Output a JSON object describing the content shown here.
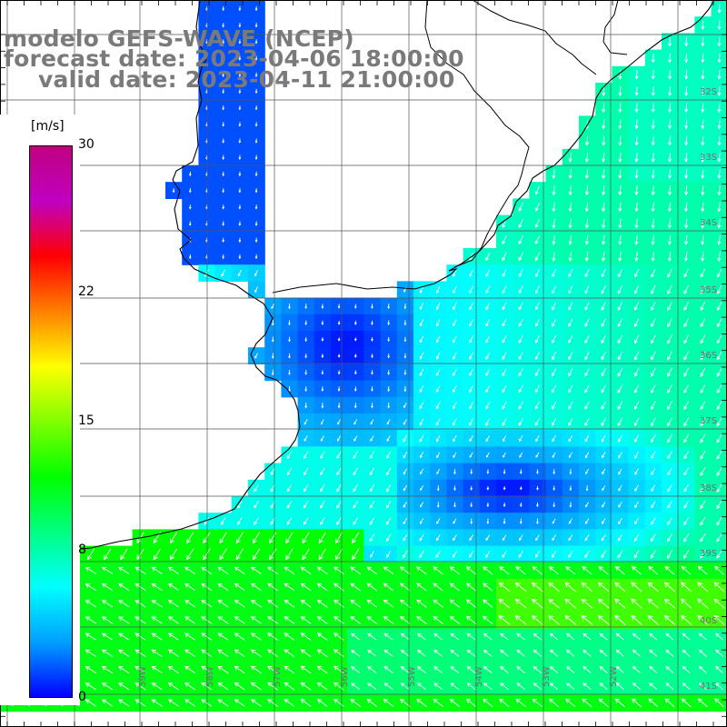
{
  "header": {
    "model": "modelo GEFS-WAVE (NCEP)",
    "forecast_date": "forecast date: 2023-04-06 18:00:00",
    "valid_date": "valid date: 2023-04-11 21:00:00"
  },
  "colorbar": {
    "unit": "[m/s]",
    "min": 0,
    "max": 30,
    "ticks": [
      "30",
      "22",
      "15",
      "8",
      "0"
    ],
    "tick_values": [
      30,
      22,
      15,
      8,
      0
    ],
    "colors": [
      "#0000ff",
      "#00a0ff",
      "#00ffff",
      "#00ff80",
      "#00ff00",
      "#80ff00",
      "#ffff00",
      "#ff8000",
      "#ff0000",
      "#c000c0",
      "#c00080"
    ]
  },
  "map": {
    "lon_range": [
      -63,
      -52
    ],
    "lat_range": [
      -42,
      -31
    ],
    "grid_interval_deg": 1,
    "lon_labels": [
      "61W",
      "60W",
      "59W",
      "58W",
      "57W",
      "56W",
      "55W",
      "54W",
      "53W",
      "52W"
    ],
    "lat_labels": [
      "32S",
      "33S",
      "34S",
      "35S",
      "36S",
      "37S",
      "38S",
      "39S",
      "40S",
      "41S"
    ],
    "land_color": "#ffffff",
    "coast_color": "#000000",
    "vector_color": "#ffffff"
  }
}
